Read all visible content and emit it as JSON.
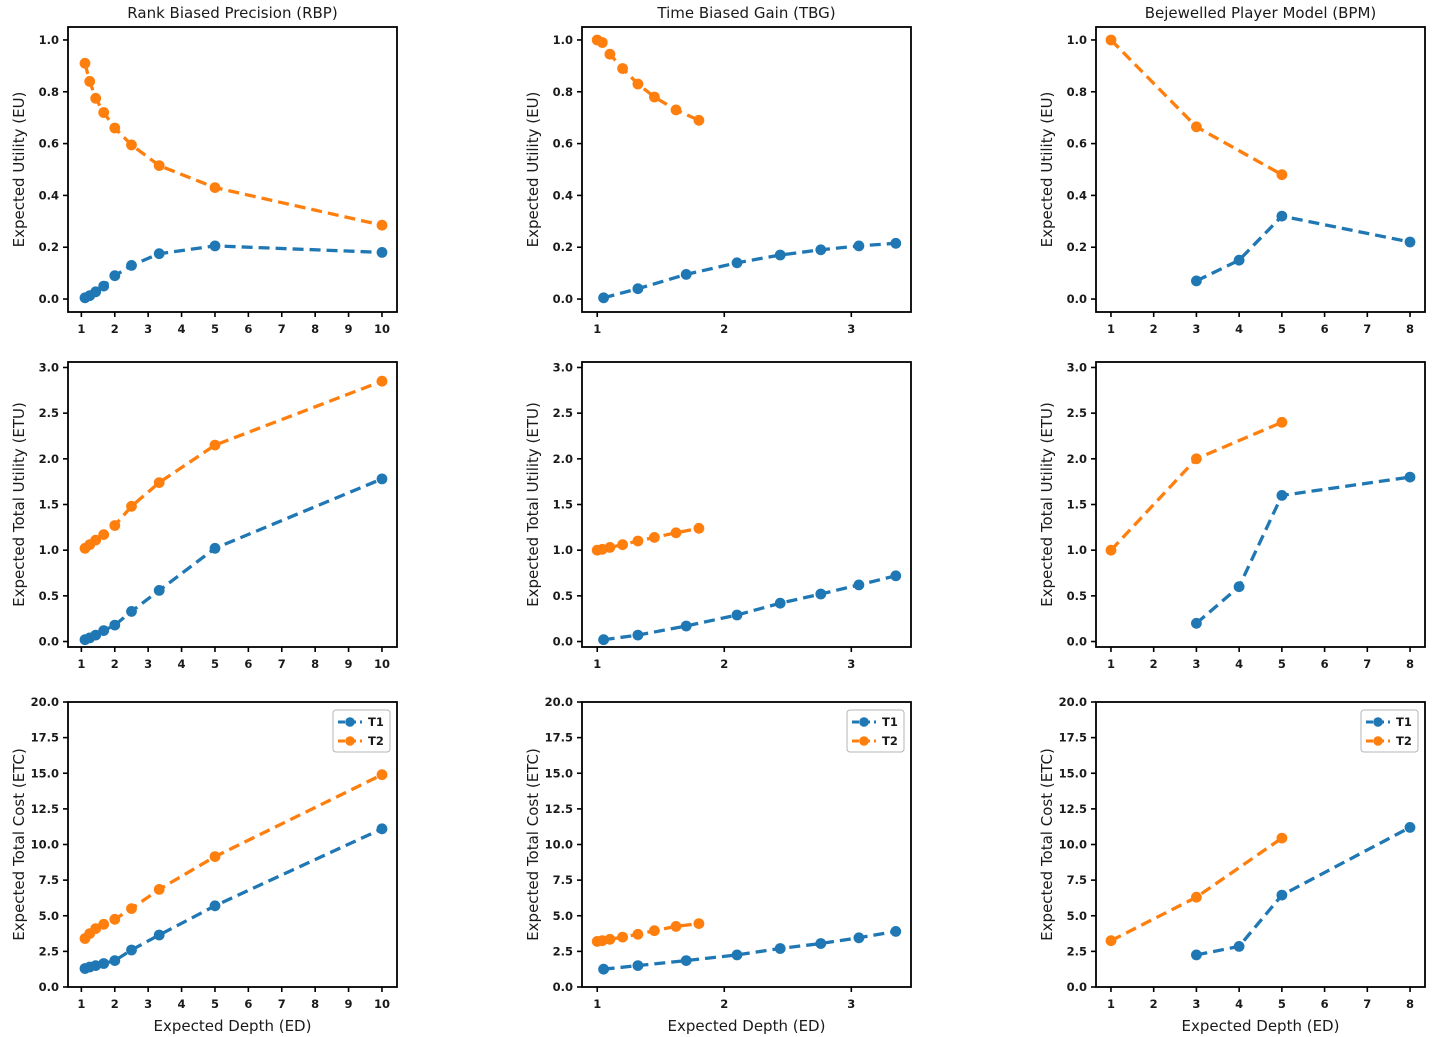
{
  "figure": {
    "background": "#ffffff",
    "axis_color": "#000000",
    "series_colors": {
      "T1": "#1f77b4",
      "T2": "#ff7f0e"
    },
    "shared_xlabel": "Expected Depth (ED)",
    "legend": {
      "labels": [
        "T1",
        "T2"
      ],
      "position": "upper right",
      "shown_on_rows": [
        2
      ]
    }
  },
  "chart_data": [
    {
      "type": "line",
      "row": 0,
      "col": 0,
      "title": "Rank Biased Precision (RBP)",
      "ylabel": "Expected Utility (EU)",
      "xlabel": "",
      "xlim": [
        0.6,
        10.45
      ],
      "ylim": [
        -0.05,
        1.05
      ],
      "xticks": [
        1,
        2,
        3,
        4,
        5,
        6,
        7,
        8,
        9,
        10
      ],
      "yticks": [
        0.0,
        0.2,
        0.4,
        0.6,
        0.8,
        1.0
      ],
      "legend": false,
      "series": [
        {
          "name": "T1",
          "color": "#1f77b4",
          "x": [
            1.11,
            1.25,
            1.43,
            1.67,
            2.0,
            2.5,
            3.33,
            5.0,
            10.0
          ],
          "y": [
            0.005,
            0.013,
            0.028,
            0.05,
            0.09,
            0.13,
            0.175,
            0.205,
            0.18
          ]
        },
        {
          "name": "T2",
          "color": "#ff7f0e",
          "x": [
            1.11,
            1.25,
            1.43,
            1.67,
            2.0,
            2.5,
            3.33,
            5.0,
            10.0
          ],
          "y": [
            0.91,
            0.84,
            0.775,
            0.72,
            0.66,
            0.595,
            0.515,
            0.43,
            0.285
          ]
        }
      ]
    },
    {
      "type": "line",
      "row": 0,
      "col": 1,
      "title": "Time Biased Gain (TBG)",
      "ylabel": "Expected Utility (EU)",
      "xlabel": "",
      "xlim": [
        0.88,
        3.47
      ],
      "ylim": [
        -0.05,
        1.05
      ],
      "xticks": [
        1,
        2,
        3
      ],
      "yticks": [
        0.0,
        0.2,
        0.4,
        0.6,
        0.8,
        1.0
      ],
      "legend": false,
      "series": [
        {
          "name": "T1",
          "color": "#1f77b4",
          "x": [
            1.05,
            1.32,
            1.7,
            2.1,
            2.44,
            2.76,
            3.06,
            3.35
          ],
          "y": [
            0.005,
            0.04,
            0.095,
            0.14,
            0.17,
            0.19,
            0.205,
            0.215
          ]
        },
        {
          "name": "T2",
          "color": "#ff7f0e",
          "x": [
            1.0,
            1.04,
            1.1,
            1.2,
            1.32,
            1.45,
            1.62,
            1.8
          ],
          "y": [
            1.0,
            0.99,
            0.945,
            0.89,
            0.83,
            0.78,
            0.73,
            0.69
          ]
        }
      ]
    },
    {
      "type": "line",
      "row": 0,
      "col": 2,
      "title": "Bejewelled Player Model (BPM)",
      "ylabel": "Expected Utility (EU)",
      "xlabel": "",
      "xlim": [
        0.65,
        8.35
      ],
      "ylim": [
        -0.05,
        1.05
      ],
      "xticks": [
        1,
        2,
        3,
        4,
        5,
        6,
        7,
        8
      ],
      "yticks": [
        0.0,
        0.2,
        0.4,
        0.6,
        0.8,
        1.0
      ],
      "legend": false,
      "series": [
        {
          "name": "T1",
          "color": "#1f77b4",
          "x": [
            3,
            4,
            5,
            8
          ],
          "y": [
            0.07,
            0.15,
            0.32,
            0.22
          ]
        },
        {
          "name": "T2",
          "color": "#ff7f0e",
          "x": [
            1,
            3,
            5
          ],
          "y": [
            1.0,
            0.665,
            0.48
          ]
        }
      ]
    },
    {
      "type": "line",
      "row": 1,
      "col": 0,
      "title": "",
      "ylabel": "Expected Total Utility (ETU)",
      "xlabel": "",
      "xlim": [
        0.6,
        10.45
      ],
      "ylim": [
        -0.06,
        3.06
      ],
      "xticks": [
        1,
        2,
        3,
        4,
        5,
        6,
        7,
        8,
        9,
        10
      ],
      "yticks": [
        0.0,
        0.5,
        1.0,
        1.5,
        2.0,
        2.5,
        3.0
      ],
      "legend": false,
      "series": [
        {
          "name": "T1",
          "color": "#1f77b4",
          "x": [
            1.11,
            1.25,
            1.43,
            1.67,
            2.0,
            2.5,
            3.33,
            5.0,
            10.0
          ],
          "y": [
            0.02,
            0.04,
            0.07,
            0.12,
            0.18,
            0.33,
            0.56,
            1.02,
            1.78
          ]
        },
        {
          "name": "T2",
          "color": "#ff7f0e",
          "x": [
            1.11,
            1.25,
            1.43,
            1.67,
            2.0,
            2.5,
            3.33,
            5.0,
            10.0
          ],
          "y": [
            1.02,
            1.06,
            1.11,
            1.17,
            1.27,
            1.48,
            1.74,
            2.15,
            2.85
          ]
        }
      ]
    },
    {
      "type": "line",
      "row": 1,
      "col": 1,
      "title": "",
      "ylabel": "Expected Total Utility (ETU)",
      "xlabel": "",
      "xlim": [
        0.88,
        3.47
      ],
      "ylim": [
        -0.06,
        3.06
      ],
      "xticks": [
        1,
        2,
        3
      ],
      "yticks": [
        0.0,
        0.5,
        1.0,
        1.5,
        2.0,
        2.5,
        3.0
      ],
      "legend": false,
      "series": [
        {
          "name": "T1",
          "color": "#1f77b4",
          "x": [
            1.05,
            1.32,
            1.7,
            2.1,
            2.44,
            2.76,
            3.06,
            3.35
          ],
          "y": [
            0.02,
            0.07,
            0.17,
            0.29,
            0.42,
            0.52,
            0.62,
            0.72
          ]
        },
        {
          "name": "T2",
          "color": "#ff7f0e",
          "x": [
            1.0,
            1.04,
            1.1,
            1.2,
            1.32,
            1.45,
            1.62,
            1.8
          ],
          "y": [
            1.0,
            1.01,
            1.03,
            1.06,
            1.1,
            1.14,
            1.19,
            1.24
          ]
        }
      ]
    },
    {
      "type": "line",
      "row": 1,
      "col": 2,
      "title": "",
      "ylabel": "Expected Total Utility (ETU)",
      "xlabel": "",
      "xlim": [
        0.65,
        8.35
      ],
      "ylim": [
        -0.06,
        3.06
      ],
      "xticks": [
        1,
        2,
        3,
        4,
        5,
        6,
        7,
        8
      ],
      "yticks": [
        0.0,
        0.5,
        1.0,
        1.5,
        2.0,
        2.5,
        3.0
      ],
      "legend": false,
      "series": [
        {
          "name": "T1",
          "color": "#1f77b4",
          "x": [
            3,
            4,
            5,
            8
          ],
          "y": [
            0.2,
            0.6,
            1.6,
            1.8
          ]
        },
        {
          "name": "T2",
          "color": "#ff7f0e",
          "x": [
            1,
            3,
            5
          ],
          "y": [
            1.0,
            2.0,
            2.4
          ]
        }
      ]
    },
    {
      "type": "line",
      "row": 2,
      "col": 0,
      "title": "",
      "ylabel": "Expected Total Cost (ETC)",
      "xlabel": "Expected Depth (ED)",
      "xlim": [
        0.6,
        10.45
      ],
      "ylim": [
        0.0,
        20.0
      ],
      "xticks": [
        1,
        2,
        3,
        4,
        5,
        6,
        7,
        8,
        9,
        10
      ],
      "yticks": [
        0.0,
        2.5,
        5.0,
        7.5,
        10.0,
        12.5,
        15.0,
        17.5,
        20.0
      ],
      "legend": true,
      "series": [
        {
          "name": "T1",
          "color": "#1f77b4",
          "x": [
            1.11,
            1.25,
            1.43,
            1.67,
            2.0,
            2.5,
            3.33,
            5.0,
            10.0
          ],
          "y": [
            1.3,
            1.4,
            1.5,
            1.65,
            1.85,
            2.6,
            3.65,
            5.7,
            11.1
          ]
        },
        {
          "name": "T2",
          "color": "#ff7f0e",
          "x": [
            1.11,
            1.25,
            1.43,
            1.67,
            2.0,
            2.5,
            3.33,
            5.0,
            10.0
          ],
          "y": [
            3.4,
            3.75,
            4.1,
            4.4,
            4.75,
            5.5,
            6.85,
            9.15,
            14.9
          ]
        }
      ]
    },
    {
      "type": "line",
      "row": 2,
      "col": 1,
      "title": "",
      "ylabel": "Expected Total Cost (ETC)",
      "xlabel": "Expected Depth (ED)",
      "xlim": [
        0.88,
        3.47
      ],
      "ylim": [
        0.0,
        20.0
      ],
      "xticks": [
        1,
        2,
        3
      ],
      "yticks": [
        0.0,
        2.5,
        5.0,
        7.5,
        10.0,
        12.5,
        15.0,
        17.5,
        20.0
      ],
      "legend": true,
      "series": [
        {
          "name": "T1",
          "color": "#1f77b4",
          "x": [
            1.05,
            1.32,
            1.7,
            2.1,
            2.44,
            2.76,
            3.06,
            3.35
          ],
          "y": [
            1.25,
            1.5,
            1.85,
            2.25,
            2.7,
            3.05,
            3.45,
            3.9
          ]
        },
        {
          "name": "T2",
          "color": "#ff7f0e",
          "x": [
            1.0,
            1.04,
            1.1,
            1.2,
            1.32,
            1.45,
            1.62,
            1.8
          ],
          "y": [
            3.2,
            3.25,
            3.35,
            3.5,
            3.7,
            3.95,
            4.25,
            4.45
          ]
        }
      ]
    },
    {
      "type": "line",
      "row": 2,
      "col": 2,
      "title": "",
      "ylabel": "Expected Total Cost (ETC)",
      "xlabel": "Expected Depth (ED)",
      "xlim": [
        0.65,
        8.35
      ],
      "ylim": [
        0.0,
        20.0
      ],
      "xticks": [
        1,
        2,
        3,
        4,
        5,
        6,
        7,
        8
      ],
      "yticks": [
        0.0,
        2.5,
        5.0,
        7.5,
        10.0,
        12.5,
        15.0,
        17.5,
        20.0
      ],
      "legend": true,
      "series": [
        {
          "name": "T1",
          "color": "#1f77b4",
          "x": [
            3,
            4,
            5,
            8
          ],
          "y": [
            2.25,
            2.85,
            6.45,
            11.2
          ]
        },
        {
          "name": "T2",
          "color": "#ff7f0e",
          "x": [
            1,
            3,
            5
          ],
          "y": [
            3.25,
            6.3,
            10.45
          ]
        }
      ]
    }
  ]
}
